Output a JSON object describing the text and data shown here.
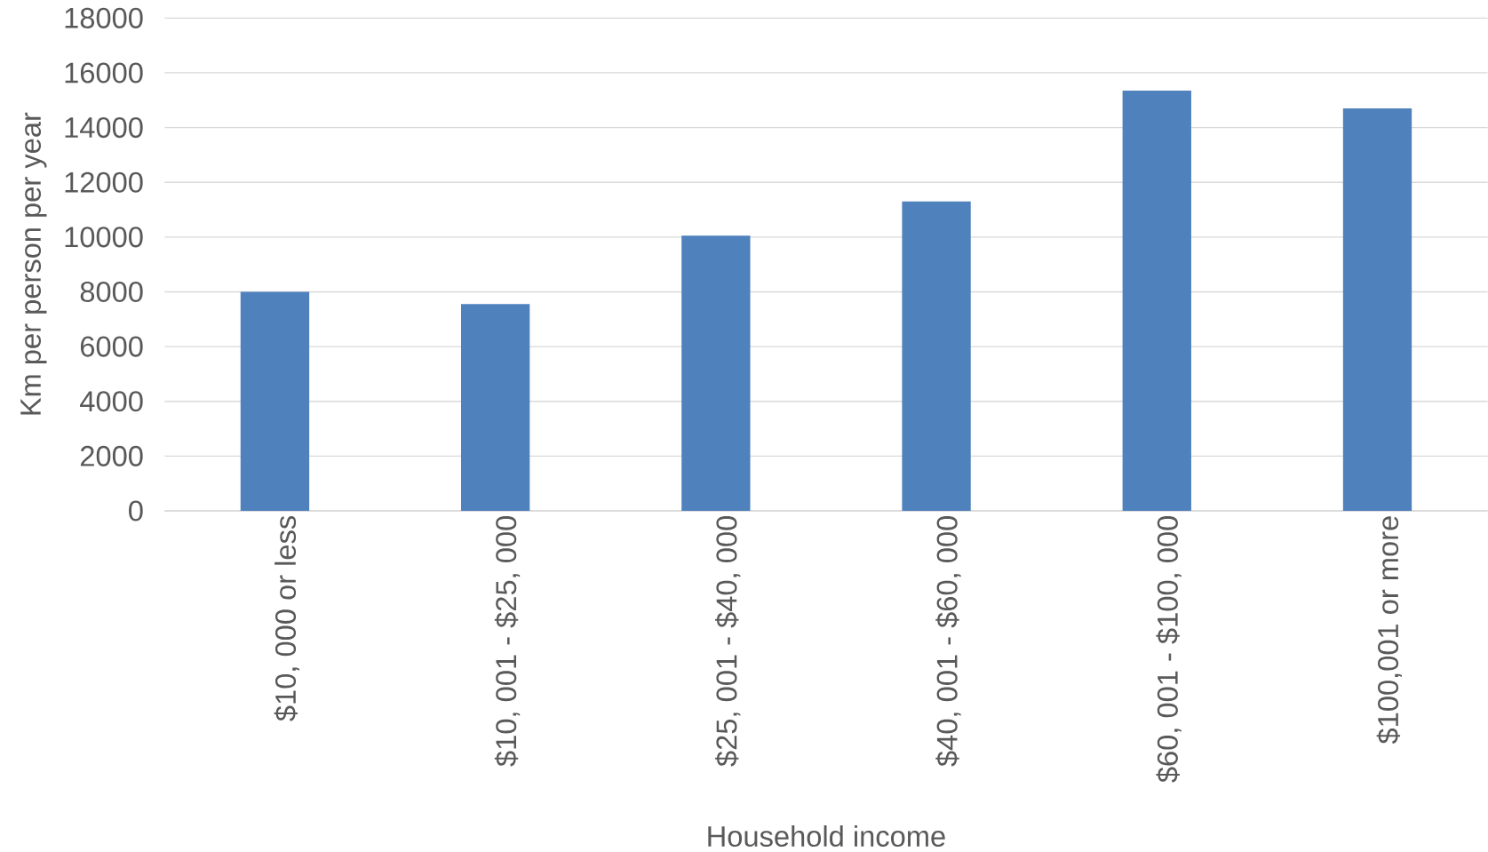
{
  "chart_data": {
    "type": "bar",
    "xlabel": "Household income",
    "ylabel": "Km per person per year",
    "categories": [
      "$10, 000 or less",
      "$10, 001 - $25, 000",
      "$25, 001 - $40, 000",
      "$40, 001 - $60, 000",
      "$60, 001 - $100, 000",
      "$100,001 or more"
    ],
    "values": [
      8000,
      7550,
      10050,
      11300,
      15350,
      14700
    ],
    "color": "#4f81bd",
    "ylim": [
      0,
      18000
    ],
    "yticks": [
      0,
      2000,
      4000,
      6000,
      8000,
      10000,
      12000,
      14000,
      16000,
      18000
    ],
    "grid": "y"
  }
}
